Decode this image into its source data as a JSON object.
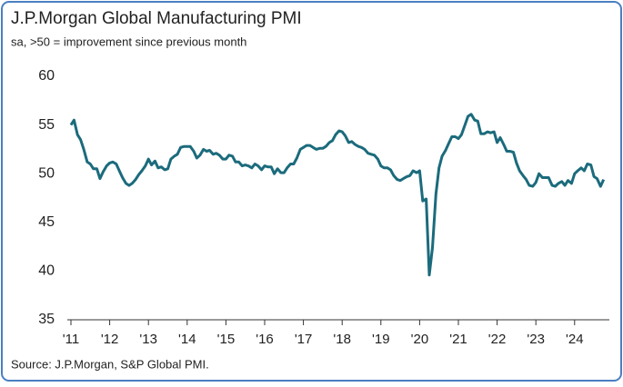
{
  "chart_data": {
    "type": "line",
    "title": "J.P.Morgan Global Manufacturing PMI",
    "subtitle": "sa, >50 = improvement since previous month",
    "source": "Source: J.P.Morgan, S&P Global PMI.",
    "color": "#1b6b7c",
    "x": [
      2011,
      2011.08,
      2011.17,
      2011.25,
      2011.33,
      2011.42,
      2011.5,
      2011.58,
      2011.67,
      2011.75,
      2011.83,
      2011.92,
      2012,
      2012.08,
      2012.17,
      2012.25,
      2012.33,
      2012.42,
      2012.5,
      2012.58,
      2012.67,
      2012.75,
      2012.83,
      2012.92,
      2013,
      2013.08,
      2013.17,
      2013.25,
      2013.33,
      2013.42,
      2013.5,
      2013.58,
      2013.67,
      2013.75,
      2013.83,
      2013.92,
      2014,
      2014.08,
      2014.17,
      2014.25,
      2014.33,
      2014.42,
      2014.5,
      2014.58,
      2014.67,
      2014.75,
      2014.83,
      2014.92,
      2015,
      2015.08,
      2015.17,
      2015.25,
      2015.33,
      2015.42,
      2015.5,
      2015.58,
      2015.67,
      2015.75,
      2015.83,
      2015.92,
      2016,
      2016.08,
      2016.17,
      2016.25,
      2016.33,
      2016.42,
      2016.5,
      2016.58,
      2016.67,
      2016.75,
      2016.83,
      2016.92,
      2017,
      2017.08,
      2017.17,
      2017.25,
      2017.33,
      2017.42,
      2017.5,
      2017.58,
      2017.67,
      2017.75,
      2017.83,
      2017.92,
      2018,
      2018.08,
      2018.17,
      2018.25,
      2018.33,
      2018.42,
      2018.5,
      2018.58,
      2018.67,
      2018.75,
      2018.83,
      2018.92,
      2019,
      2019.08,
      2019.17,
      2019.25,
      2019.33,
      2019.42,
      2019.5,
      2019.58,
      2019.67,
      2019.75,
      2019.83,
      2019.92,
      2020,
      2020.08,
      2020.17,
      2020.25,
      2020.33,
      2020.42,
      2020.5,
      2020.58,
      2020.67,
      2020.75,
      2020.83,
      2020.92,
      2021,
      2021.08,
      2021.17,
      2021.25,
      2021.33,
      2021.42,
      2021.5,
      2021.58,
      2021.67,
      2021.75,
      2021.83,
      2021.92,
      2022,
      2022.08,
      2022.17,
      2022.25,
      2022.33,
      2022.42,
      2022.5,
      2022.58,
      2022.67,
      2022.75,
      2022.83,
      2022.92,
      2023,
      2023.08,
      2023.17,
      2023.25,
      2023.33,
      2023.42,
      2023.5,
      2023.58,
      2023.67,
      2023.75,
      2023.83,
      2023.92,
      2024,
      2024.08,
      2024.17,
      2024.25,
      2024.33,
      2024.42,
      2024.5,
      2024.58,
      2024.67,
      2024.75
    ],
    "values": [
      55.0,
      55.5,
      54.0,
      53.5,
      52.5,
      51.2,
      51.0,
      50.5,
      50.5,
      49.5,
      50.2,
      50.8,
      51.1,
      51.2,
      51.0,
      50.3,
      49.6,
      49.0,
      48.8,
      49.0,
      49.4,
      49.9,
      50.3,
      50.8,
      51.5,
      50.9,
      51.3,
      50.6,
      50.7,
      50.4,
      50.5,
      51.5,
      51.8,
      52.0,
      52.7,
      52.8,
      52.8,
      52.8,
      52.3,
      51.6,
      51.9,
      52.5,
      52.3,
      52.4,
      52.0,
      52.1,
      51.9,
      51.5,
      51.5,
      51.9,
      51.8,
      51.2,
      51.2,
      50.8,
      50.9,
      50.8,
      50.6,
      51.0,
      50.8,
      50.4,
      50.8,
      50.7,
      50.7,
      50.0,
      50.5,
      50.1,
      50.1,
      50.6,
      51.0,
      51.0,
      51.6,
      52.5,
      52.7,
      52.9,
      52.9,
      52.7,
      52.5,
      52.6,
      52.6,
      52.8,
      53.2,
      53.4,
      54.0,
      54.4,
      54.3,
      53.9,
      53.2,
      53.3,
      53.0,
      52.8,
      52.7,
      52.5,
      52.1,
      52.0,
      51.9,
      51.5,
      50.8,
      50.6,
      50.6,
      50.4,
      49.8,
      49.4,
      49.3,
      49.5,
      49.7,
      49.8,
      50.3,
      50.1,
      50.3,
      47.2,
      47.4,
      39.6,
      42.4,
      47.9,
      50.6,
      51.8,
      52.4,
      53.1,
      53.8,
      53.8,
      53.6,
      54.0,
      55.0,
      55.9,
      56.1,
      55.5,
      55.4,
      54.1,
      54.1,
      54.3,
      54.2,
      54.3,
      53.2,
      53.7,
      53.0,
      52.3,
      52.3,
      52.2,
      51.1,
      50.3,
      49.8,
      49.4,
      48.8,
      48.7,
      49.1,
      50.0,
      49.6,
      49.6,
      49.6,
      48.8,
      48.7,
      49.0,
      49.2,
      48.8,
      49.3,
      49.0,
      50.0,
      50.3,
      50.6,
      50.3,
      51.0,
      50.9,
      49.7,
      49.5,
      48.7,
      49.4
    ],
    "xlim": [
      2011,
      2024.85
    ],
    "xticks": [
      {
        "value": 2011,
        "label": "'11"
      },
      {
        "value": 2012,
        "label": "'12"
      },
      {
        "value": 2013,
        "label": "'13"
      },
      {
        "value": 2014,
        "label": "'14"
      },
      {
        "value": 2015,
        "label": "'15"
      },
      {
        "value": 2016,
        "label": "'16"
      },
      {
        "value": 2017,
        "label": "'17"
      },
      {
        "value": 2018,
        "label": "'18"
      },
      {
        "value": 2019,
        "label": "'19"
      },
      {
        "value": 2020,
        "label": "'20"
      },
      {
        "value": 2021,
        "label": "'21"
      },
      {
        "value": 2022,
        "label": "'22"
      },
      {
        "value": 2023,
        "label": "'23"
      },
      {
        "value": 2024,
        "label": "'24"
      }
    ],
    "ylim": [
      35,
      60
    ],
    "yticks": [
      35,
      40,
      45,
      50,
      55,
      60
    ],
    "grid": false
  }
}
